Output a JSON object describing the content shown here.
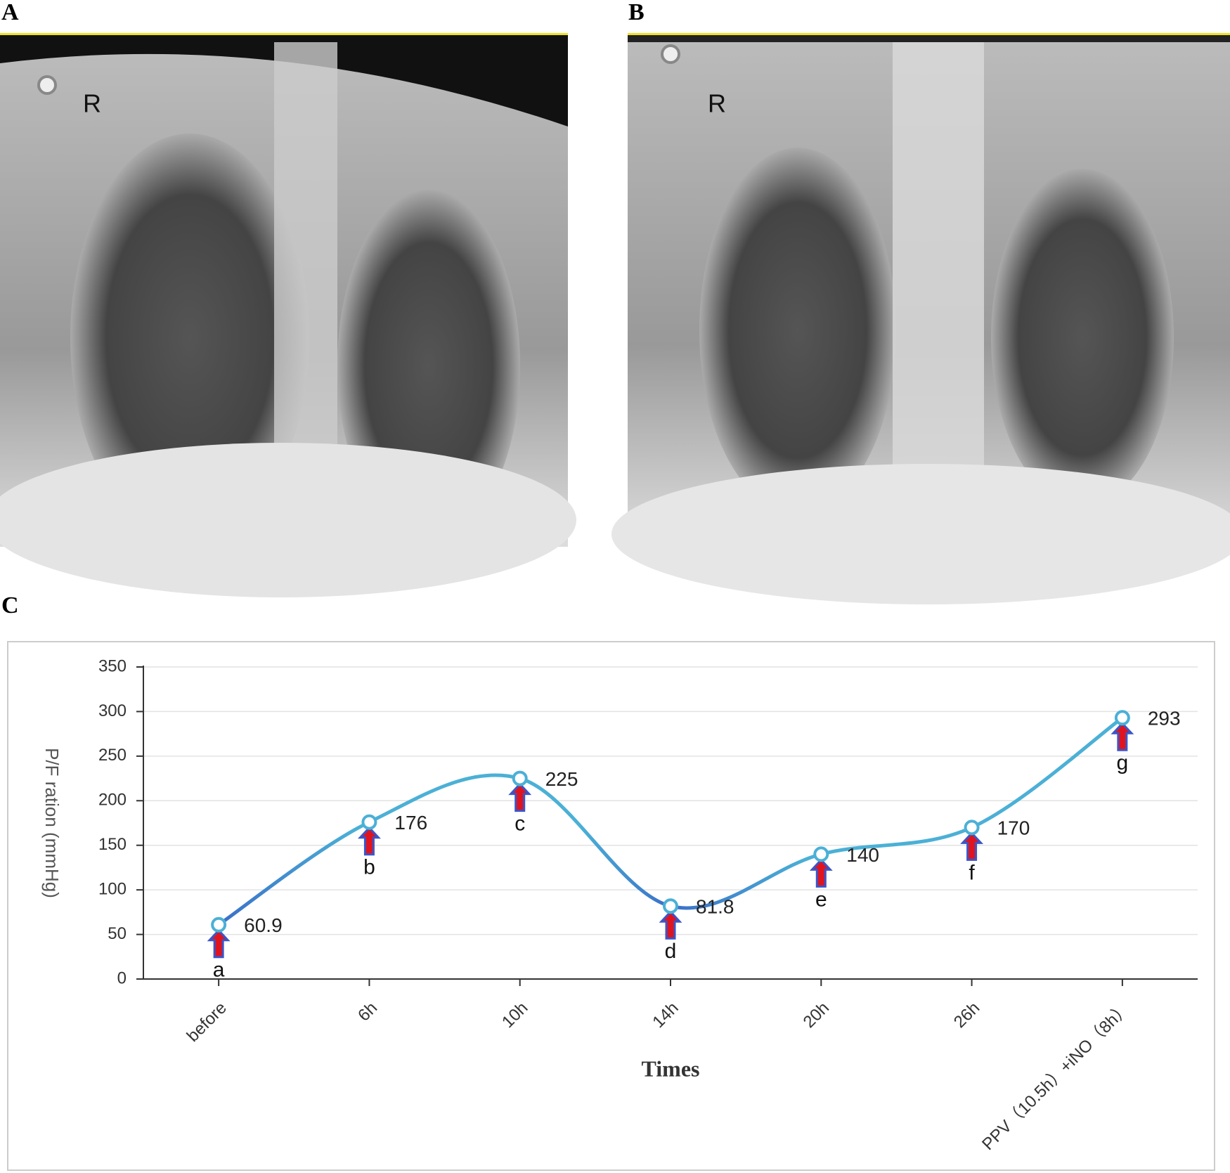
{
  "panel_labels": [
    "A",
    "B",
    "C"
  ],
  "xray_markers": [
    "R",
    "R"
  ],
  "chart_data": {
    "type": "line",
    "x_label": "Times",
    "y_label": "P/F ration (mmHg)",
    "categories": [
      "before",
      "6h",
      "10h",
      "14h",
      "20h",
      "26h",
      "PPV（10.5h）+iNO（8h）"
    ],
    "values": [
      60.9,
      176,
      225,
      81.8,
      140,
      170,
      293
    ],
    "point_labels": [
      "a",
      "b",
      "c",
      "d",
      "e",
      "f",
      "g"
    ],
    "color": "#4bb0d6",
    "ylim": [
      0,
      350
    ],
    "yticks": [
      0,
      50,
      100,
      150,
      200,
      250,
      300,
      350
    ],
    "grid": true
  }
}
